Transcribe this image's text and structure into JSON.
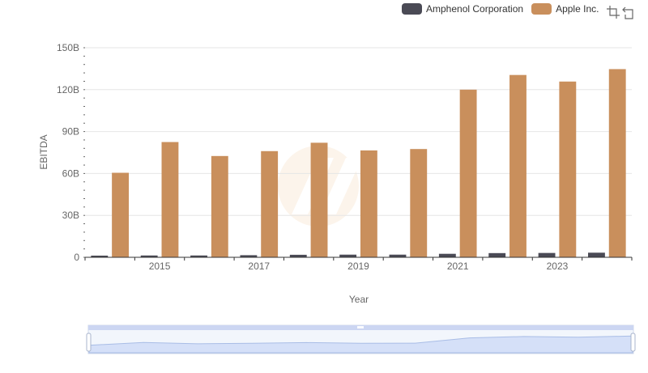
{
  "legend": {
    "items": [
      {
        "label": "Amphenol Corporation",
        "color": "#4a4a55"
      },
      {
        "label": "Apple Inc.",
        "color": "#c98f5c"
      }
    ]
  },
  "toolbox": {
    "icons": [
      "zoom-icon",
      "restore-icon"
    ]
  },
  "chart_data": {
    "type": "bar",
    "x": [
      2014,
      2015,
      2016,
      2017,
      2018,
      2019,
      2020,
      2021,
      2022,
      2023,
      2024
    ],
    "x_tick_labels": [
      "2015",
      "2017",
      "2019",
      "2021",
      "2023"
    ],
    "series": [
      {
        "name": "Amphenol Corporation",
        "color": "#4a4a55",
        "values": [
          1.2,
          1.3,
          1.3,
          1.5,
          1.8,
          1.9,
          1.9,
          2.5,
          3.0,
          3.1,
          3.3
        ]
      },
      {
        "name": "Apple Inc.",
        "color": "#c98f5c",
        "values": [
          60.5,
          82.5,
          72.5,
          76.0,
          82.0,
          76.5,
          77.5,
          120.0,
          130.5,
          125.8,
          134.7
        ]
      }
    ],
    "ylabel": "EBITDA",
    "xlabel": "Year",
    "ylim": [
      0,
      150
    ],
    "y_ticks": [
      0,
      30,
      60,
      90,
      120,
      150
    ],
    "y_tick_labels": [
      "0",
      "30B",
      "60B",
      "90B",
      "120B",
      "150B"
    ],
    "grid": true,
    "legend_position": "top-right",
    "zoom_slider": true
  }
}
